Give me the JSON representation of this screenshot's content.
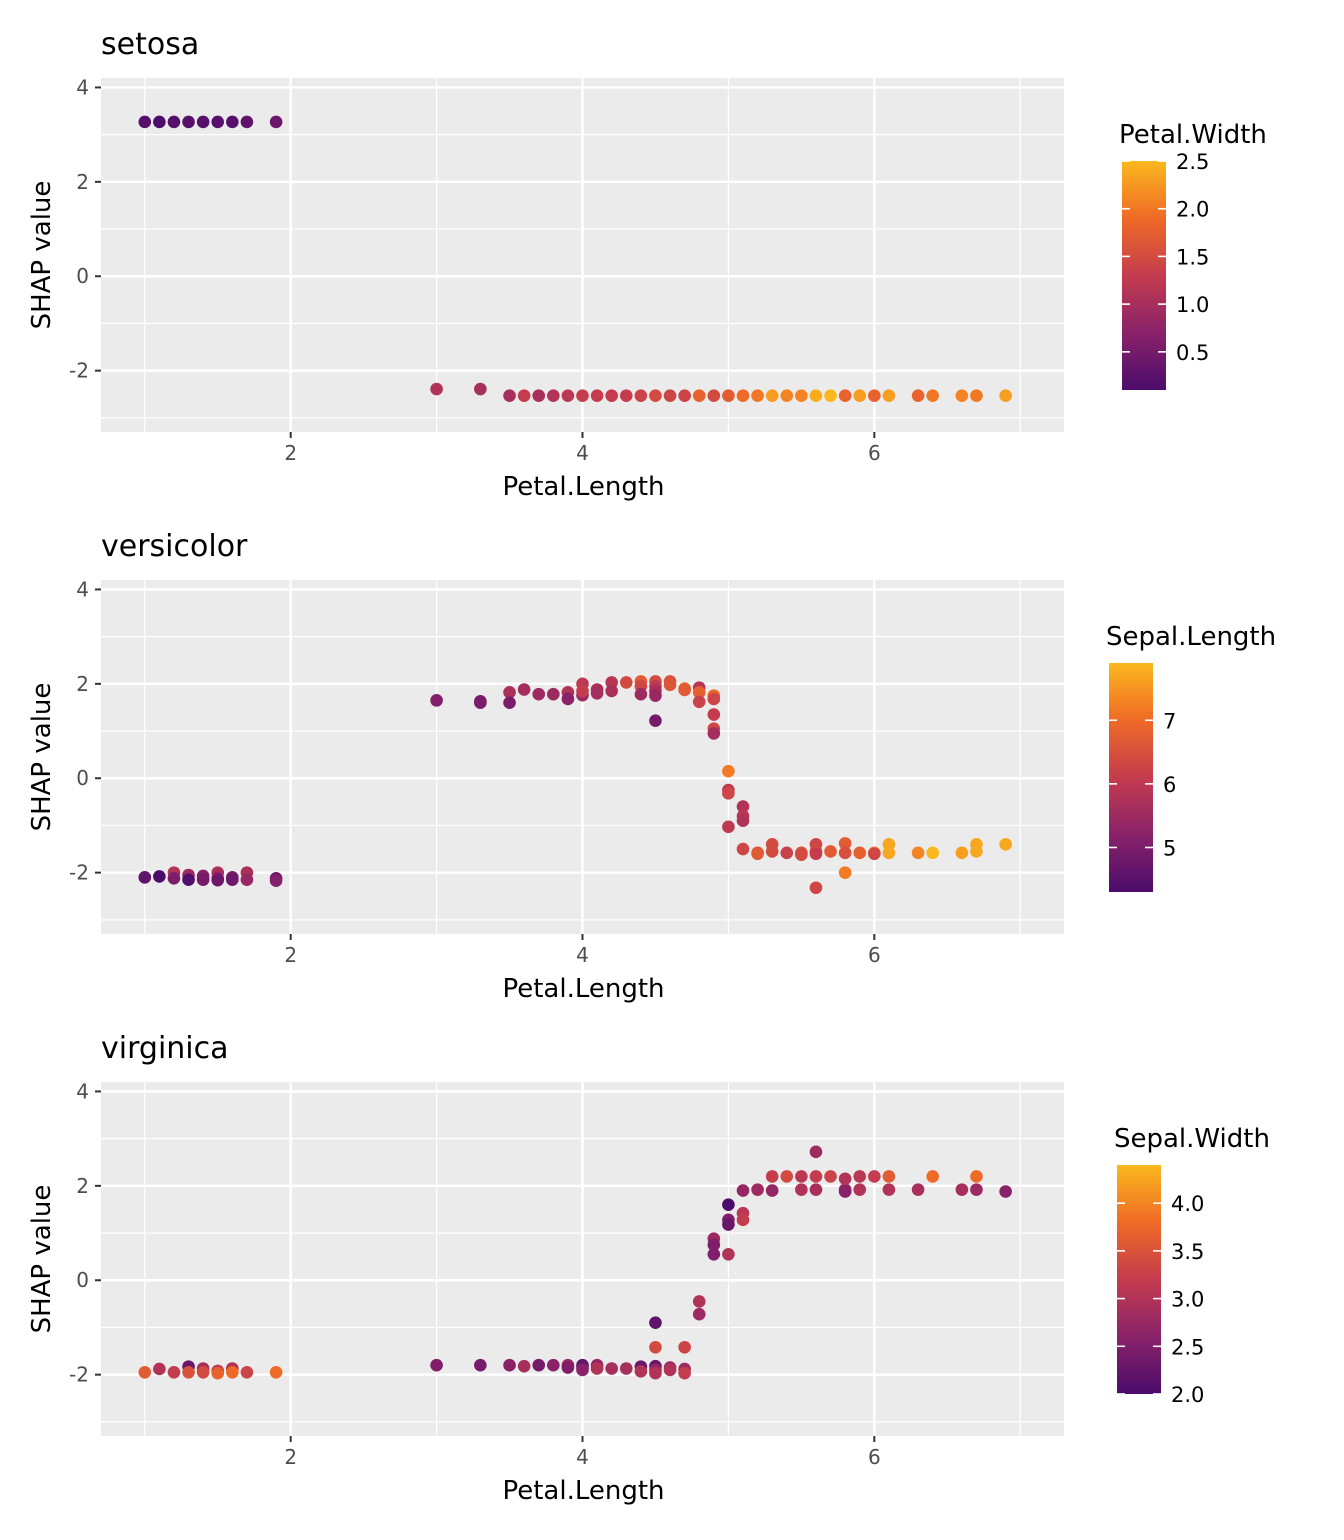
{
  "chart_data": [
    {
      "type": "scatter",
      "title": "setosa",
      "xlabel": "Petal.Length",
      "ylabel": "SHAP value",
      "xlim": [
        0.7,
        7.3
      ],
      "ylim": [
        -3.3,
        4.2
      ],
      "x_ticks": [
        "2",
        "4",
        "6"
      ],
      "y_ticks": [
        "-2",
        "0",
        "2",
        "4"
      ],
      "grid": true,
      "legend": {
        "title": "Petal.Width",
        "position": "right",
        "range": [
          0.1,
          2.5
        ],
        "ticks": [
          "0.5",
          "1.0",
          "1.5",
          "2.0",
          "2.5"
        ]
      },
      "points": [
        [
          1.0,
          3.27,
          0.2
        ],
        [
          1.1,
          3.27,
          0.1
        ],
        [
          1.2,
          3.27,
          0.2
        ],
        [
          1.3,
          3.27,
          0.2
        ],
        [
          1.4,
          3.27,
          0.2
        ],
        [
          1.5,
          3.27,
          0.2
        ],
        [
          1.6,
          3.27,
          0.2
        ],
        [
          1.7,
          3.27,
          0.3
        ],
        [
          1.9,
          3.27,
          0.4
        ],
        [
          3.0,
          -2.39,
          1.1
        ],
        [
          3.3,
          -2.39,
          1.0
        ],
        [
          3.5,
          -2.53,
          1.0
        ],
        [
          3.6,
          -2.53,
          1.3
        ],
        [
          3.7,
          -2.53,
          1.0
        ],
        [
          3.8,
          -2.53,
          1.1
        ],
        [
          3.9,
          -2.53,
          1.2
        ],
        [
          4.0,
          -2.53,
          1.3
        ],
        [
          4.1,
          -2.53,
          1.3
        ],
        [
          4.2,
          -2.53,
          1.3
        ],
        [
          4.3,
          -2.53,
          1.3
        ],
        [
          4.4,
          -2.53,
          1.4
        ],
        [
          4.5,
          -2.53,
          1.5
        ],
        [
          4.6,
          -2.53,
          1.4
        ],
        [
          4.7,
          -2.53,
          1.4
        ],
        [
          4.8,
          -2.53,
          1.8
        ],
        [
          4.9,
          -2.53,
          1.5
        ],
        [
          5.0,
          -2.53,
          1.7
        ],
        [
          5.1,
          -2.53,
          1.9
        ],
        [
          5.2,
          -2.53,
          2.0
        ],
        [
          5.3,
          -2.53,
          2.3
        ],
        [
          5.4,
          -2.53,
          2.1
        ],
        [
          5.5,
          -2.53,
          2.1
        ],
        [
          5.6,
          -2.53,
          2.4
        ],
        [
          5.7,
          -2.53,
          2.5
        ],
        [
          5.8,
          -2.53,
          1.8
        ],
        [
          5.9,
          -2.53,
          2.3
        ],
        [
          6.0,
          -2.53,
          1.8
        ],
        [
          6.1,
          -2.53,
          2.3
        ],
        [
          6.3,
          -2.53,
          1.8
        ],
        [
          6.4,
          -2.53,
          2.0
        ],
        [
          6.6,
          -2.53,
          2.1
        ],
        [
          6.7,
          -2.53,
          2.0
        ],
        [
          6.9,
          -2.53,
          2.3
        ]
      ]
    },
    {
      "type": "scatter",
      "title": "versicolor",
      "xlabel": "Petal.Length",
      "ylabel": "SHAP value",
      "xlim": [
        0.7,
        7.3
      ],
      "ylim": [
        -3.3,
        4.2
      ],
      "x_ticks": [
        "2",
        "4",
        "6"
      ],
      "y_ticks": [
        "-2",
        "0",
        "2",
        "4"
      ],
      "grid": true,
      "legend": {
        "title": "Sepal.Length",
        "position": "right",
        "range": [
          4.3,
          7.9
        ],
        "ticks": [
          "5",
          "6",
          "7"
        ]
      },
      "points": [
        [
          1.0,
          -2.1,
          4.6
        ],
        [
          1.1,
          -2.08,
          4.3
        ],
        [
          1.2,
          -2.0,
          5.8
        ],
        [
          1.2,
          -2.12,
          5.0
        ],
        [
          1.3,
          -2.05,
          5.5
        ],
        [
          1.3,
          -2.15,
          4.4
        ],
        [
          1.4,
          -2.07,
          5.1
        ],
        [
          1.4,
          -2.15,
          4.9
        ],
        [
          1.5,
          -2.0,
          5.7
        ],
        [
          1.5,
          -2.12,
          5.2
        ],
        [
          1.5,
          -2.16,
          4.8
        ],
        [
          1.6,
          -2.1,
          5.0
        ],
        [
          1.6,
          -2.15,
          4.8
        ],
        [
          1.7,
          -2.0,
          5.7
        ],
        [
          1.7,
          -2.15,
          5.4
        ],
        [
          1.9,
          -2.12,
          4.8
        ],
        [
          1.9,
          -2.17,
          5.1
        ],
        [
          3.0,
          1.65,
          5.1
        ],
        [
          3.3,
          1.63,
          4.9
        ],
        [
          3.3,
          1.6,
          5.0
        ],
        [
          3.5,
          1.82,
          5.7
        ],
        [
          3.5,
          1.6,
          5.0
        ],
        [
          3.6,
          1.88,
          5.6
        ],
        [
          3.7,
          1.78,
          5.5
        ],
        [
          3.8,
          1.78,
          5.5
        ],
        [
          3.9,
          1.82,
          5.8
        ],
        [
          3.9,
          1.68,
          5.2
        ],
        [
          4.0,
          2.0,
          6.0
        ],
        [
          4.0,
          1.76,
          5.5
        ],
        [
          4.0,
          1.85,
          6.1
        ],
        [
          4.1,
          1.88,
          5.7
        ],
        [
          4.1,
          1.8,
          5.6
        ],
        [
          4.2,
          2.03,
          5.9
        ],
        [
          4.2,
          1.85,
          5.7
        ],
        [
          4.3,
          2.03,
          6.4
        ],
        [
          4.4,
          2.05,
          6.7
        ],
        [
          4.4,
          1.95,
          6.3
        ],
        [
          4.4,
          1.78,
          5.5
        ],
        [
          4.5,
          2.05,
          6.4
        ],
        [
          4.5,
          1.95,
          6.0
        ],
        [
          4.5,
          1.85,
          5.7
        ],
        [
          4.5,
          1.75,
          5.4
        ],
        [
          4.5,
          1.22,
          4.9
        ],
        [
          4.6,
          2.05,
          6.5
        ],
        [
          4.6,
          1.98,
          6.6
        ],
        [
          4.7,
          1.9,
          7.0
        ],
        [
          4.7,
          1.87,
          6.7
        ],
        [
          4.8,
          1.92,
          5.9
        ],
        [
          4.8,
          1.82,
          6.8
        ],
        [
          4.8,
          1.62,
          6.2
        ],
        [
          4.9,
          1.75,
          6.9
        ],
        [
          4.9,
          1.68,
          6.3
        ],
        [
          4.9,
          1.35,
          6.1
        ],
        [
          4.9,
          1.05,
          6.3
        ],
        [
          4.9,
          0.95,
          5.6
        ],
        [
          5.0,
          0.15,
          7.2
        ],
        [
          5.0,
          -0.25,
          6.0
        ],
        [
          5.0,
          -0.32,
          6.3
        ],
        [
          5.0,
          -1.03,
          6.0
        ],
        [
          5.1,
          -0.6,
          5.8
        ],
        [
          5.1,
          -0.8,
          5.9
        ],
        [
          5.1,
          -0.9,
          5.8
        ],
        [
          5.1,
          -1.5,
          6.3
        ],
        [
          5.2,
          -1.58,
          6.5
        ],
        [
          5.2,
          -1.6,
          6.7
        ],
        [
          5.3,
          -1.4,
          6.4
        ],
        [
          5.3,
          -1.55,
          6.4
        ],
        [
          5.4,
          -1.58,
          6.2
        ],
        [
          5.5,
          -1.58,
          6.5
        ],
        [
          5.5,
          -1.62,
          6.4
        ],
        [
          5.6,
          -1.4,
          6.3
        ],
        [
          5.6,
          -1.55,
          6.4
        ],
        [
          5.6,
          -1.6,
          6.1
        ],
        [
          5.6,
          -2.32,
          6.3
        ],
        [
          5.7,
          -1.55,
          6.7
        ],
        [
          5.8,
          -1.38,
          6.7
        ],
        [
          5.8,
          -1.58,
          6.5
        ],
        [
          5.8,
          -2.0,
          7.2
        ],
        [
          5.9,
          -1.58,
          6.8
        ],
        [
          6.0,
          -1.58,
          7.2
        ],
        [
          6.0,
          -1.6,
          6.3
        ],
        [
          6.1,
          -1.4,
          7.7
        ],
        [
          6.1,
          -1.58,
          7.7
        ],
        [
          6.3,
          -1.58,
          7.3
        ],
        [
          6.4,
          -1.58,
          7.9
        ],
        [
          6.6,
          -1.58,
          7.6
        ],
        [
          6.7,
          -1.4,
          7.7
        ],
        [
          6.7,
          -1.55,
          7.7
        ],
        [
          6.9,
          -1.4,
          7.7
        ]
      ]
    },
    {
      "type": "scatter",
      "title": "virginica",
      "xlabel": "Petal.Length",
      "ylabel": "SHAP value",
      "xlim": [
        0.7,
        7.3
      ],
      "ylim": [
        -3.3,
        4.2
      ],
      "x_ticks": [
        "2",
        "4",
        "6"
      ],
      "y_ticks": [
        "-2",
        "0",
        "2",
        "4"
      ],
      "grid": true,
      "legend": {
        "title": "Sepal.Width",
        "position": "right",
        "range": [
          2.0,
          4.4
        ],
        "ticks": [
          "2.0",
          "2.5",
          "3.0",
          "3.5",
          "4.0"
        ]
      },
      "points": [
        [
          1.0,
          -1.95,
          3.6
        ],
        [
          1.1,
          -1.88,
          3.0
        ],
        [
          1.2,
          -1.95,
          3.2
        ],
        [
          1.3,
          -1.83,
          2.3
        ],
        [
          1.3,
          -1.95,
          3.5
        ],
        [
          1.4,
          -1.87,
          2.9
        ],
        [
          1.4,
          -1.95,
          3.4
        ],
        [
          1.5,
          -1.92,
          3.1
        ],
        [
          1.5,
          -1.97,
          3.7
        ],
        [
          1.6,
          -1.87,
          3.0
        ],
        [
          1.6,
          -1.95,
          3.8
        ],
        [
          1.7,
          -1.95,
          3.3
        ],
        [
          1.9,
          -1.95,
          3.8
        ],
        [
          3.0,
          -1.8,
          2.5
        ],
        [
          3.3,
          -1.8,
          2.4
        ],
        [
          3.5,
          -1.8,
          2.6
        ],
        [
          3.6,
          -1.82,
          2.9
        ],
        [
          3.7,
          -1.8,
          2.4
        ],
        [
          3.8,
          -1.8,
          2.6
        ],
        [
          3.9,
          -1.8,
          2.7
        ],
        [
          3.9,
          -1.85,
          2.5
        ],
        [
          4.0,
          -1.8,
          2.2
        ],
        [
          4.0,
          -1.85,
          2.3
        ],
        [
          4.0,
          -1.9,
          2.6
        ],
        [
          4.1,
          -1.8,
          2.7
        ],
        [
          4.1,
          -1.87,
          3.0
        ],
        [
          4.2,
          -1.87,
          2.9
        ],
        [
          4.3,
          -1.87,
          2.9
        ],
        [
          4.4,
          -1.83,
          2.3
        ],
        [
          4.4,
          -1.93,
          3.0
        ],
        [
          4.5,
          -0.9,
          2.2
        ],
        [
          4.5,
          -1.42,
          3.4
        ],
        [
          4.5,
          -1.82,
          2.3
        ],
        [
          4.5,
          -1.9,
          2.7
        ],
        [
          4.5,
          -1.97,
          3.0
        ],
        [
          4.6,
          -1.85,
          2.8
        ],
        [
          4.6,
          -1.9,
          3.0
        ],
        [
          4.7,
          -1.42,
          3.3
        ],
        [
          4.7,
          -1.88,
          2.8
        ],
        [
          4.7,
          -1.97,
          3.2
        ],
        [
          4.8,
          -0.45,
          3.0
        ],
        [
          4.8,
          -0.72,
          2.8
        ],
        [
          4.9,
          0.88,
          2.8
        ],
        [
          4.9,
          0.75,
          2.5
        ],
        [
          4.9,
          0.55,
          2.5
        ],
        [
          5.0,
          1.6,
          2.0
        ],
        [
          5.0,
          1.28,
          2.5
        ],
        [
          5.0,
          1.18,
          2.3
        ],
        [
          5.0,
          0.55,
          3.0
        ],
        [
          5.1,
          1.9,
          2.7
        ],
        [
          5.1,
          1.42,
          3.1
        ],
        [
          5.1,
          1.28,
          3.2
        ],
        [
          5.2,
          1.92,
          2.8
        ],
        [
          5.3,
          1.9,
          2.7
        ],
        [
          5.3,
          2.2,
          3.2
        ],
        [
          5.4,
          2.2,
          3.4
        ],
        [
          5.5,
          1.92,
          3.0
        ],
        [
          5.5,
          2.2,
          3.1
        ],
        [
          5.6,
          2.72,
          2.8
        ],
        [
          5.6,
          2.2,
          3.2
        ],
        [
          5.6,
          1.92,
          2.9
        ],
        [
          5.7,
          2.2,
          3.3
        ],
        [
          5.8,
          1.92,
          2.7
        ],
        [
          5.8,
          1.88,
          2.6
        ],
        [
          5.8,
          2.15,
          3.0
        ],
        [
          5.9,
          2.2,
          3.1
        ],
        [
          5.9,
          1.92,
          3.0
        ],
        [
          6.0,
          2.2,
          3.2
        ],
        [
          6.1,
          2.2,
          3.6
        ],
        [
          6.1,
          1.92,
          3.0
        ],
        [
          6.3,
          1.92,
          2.9
        ],
        [
          6.4,
          2.2,
          3.8
        ],
        [
          6.6,
          1.92,
          2.9
        ],
        [
          6.7,
          2.2,
          3.8
        ],
        [
          6.7,
          1.92,
          2.8
        ],
        [
          6.9,
          1.88,
          2.6
        ]
      ]
    }
  ]
}
